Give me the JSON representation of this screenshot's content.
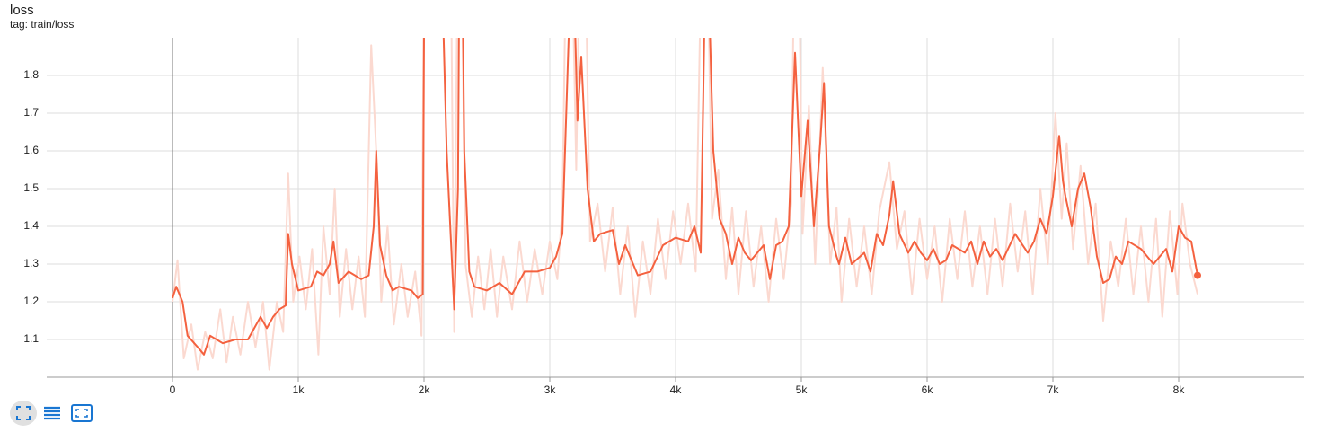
{
  "title": "loss",
  "tag": "tag: train/loss",
  "chart_data": {
    "type": "line",
    "xlim": [
      -1000,
      9000
    ],
    "ylim": [
      1.0,
      1.9
    ],
    "xticks": [
      0,
      {
        "value": 1000,
        "label": "1k"
      },
      {
        "value": 2000,
        "label": "2k"
      },
      {
        "value": 3000,
        "label": "3k"
      },
      {
        "value": 4000,
        "label": "4k"
      },
      {
        "value": 5000,
        "label": "5k"
      },
      {
        "value": 6000,
        "label": "6k"
      },
      {
        "value": 7000,
        "label": "7k"
      },
      {
        "value": 8000,
        "label": "8k"
      }
    ],
    "yticks": [
      1.1,
      1.2,
      1.3,
      1.4,
      1.5,
      1.6,
      1.7,
      1.8
    ],
    "grid": true,
    "series": [
      {
        "color": "#fbd9d0",
        "x": [
          0,
          40,
          90,
          150,
          200,
          260,
          320,
          380,
          430,
          480,
          540,
          600,
          660,
          720,
          770,
          830,
          880,
          920,
          960,
          1010,
          1060,
          1110,
          1160,
          1200,
          1250,
          1290,
          1330,
          1380,
          1430,
          1480,
          1530,
          1580,
          1620,
          1660,
          1710,
          1760,
          1820,
          1870,
          1930,
          1980,
          2010,
          2200,
          2240,
          2280,
          2330,
          2380,
          2430,
          2480,
          2530,
          2580,
          2630,
          2700,
          2760,
          2820,
          2880,
          2940,
          3000,
          3060,
          3100,
          3150,
          3210,
          3260,
          3320,
          3380,
          3440,
          3500,
          3560,
          3620,
          3680,
          3740,
          3800,
          3860,
          3920,
          3980,
          4040,
          4100,
          4160,
          4230,
          4290,
          4340,
          4400,
          4450,
          4500,
          4560,
          4620,
          4680,
          4740,
          4800,
          4860,
          4920,
          4960,
          5010,
          5060,
          5110,
          5170,
          5230,
          5280,
          5320,
          5380,
          5440,
          5500,
          5560,
          5620,
          5700,
          5760,
          5820,
          5880,
          5940,
          6000,
          6060,
          6120,
          6180,
          6240,
          6300,
          6360,
          6420,
          6480,
          6540,
          6600,
          6660,
          6720,
          6780,
          6840,
          6900,
          6960,
          7020,
          7070,
          7110,
          7160,
          7220,
          7280,
          7340,
          7400,
          7460,
          7520,
          7580,
          7640,
          7700,
          7760,
          7820,
          7870,
          7930,
          7990,
          8030,
          8090,
          8150
        ],
        "values": [
          1.2,
          1.31,
          1.05,
          1.14,
          1.02,
          1.12,
          1.05,
          1.18,
          1.04,
          1.16,
          1.06,
          1.2,
          1.08,
          1.2,
          1.02,
          1.2,
          1.12,
          1.54,
          1.2,
          1.32,
          1.18,
          1.34,
          1.06,
          1.4,
          1.22,
          1.5,
          1.16,
          1.34,
          1.18,
          1.32,
          1.16,
          1.88,
          1.6,
          1.2,
          1.4,
          1.14,
          1.3,
          1.16,
          1.28,
          1.11,
          2.6,
          2.6,
          1.12,
          2.6,
          1.3,
          1.16,
          1.32,
          1.18,
          1.34,
          1.16,
          1.32,
          1.18,
          1.36,
          1.2,
          1.34,
          1.22,
          1.36,
          1.26,
          1.45,
          2.6,
          1.55,
          2.6,
          1.36,
          1.46,
          1.28,
          1.45,
          1.22,
          1.4,
          1.16,
          1.36,
          1.22,
          1.42,
          1.26,
          1.44,
          1.3,
          1.46,
          1.28,
          2.6,
          1.42,
          1.55,
          1.26,
          1.45,
          1.22,
          1.44,
          1.24,
          1.4,
          1.2,
          1.42,
          1.26,
          1.46,
          2.6,
          1.38,
          1.72,
          1.3,
          1.82,
          1.3,
          1.45,
          1.2,
          1.42,
          1.24,
          1.4,
          1.22,
          1.44,
          1.57,
          1.34,
          1.44,
          1.22,
          1.42,
          1.26,
          1.4,
          1.2,
          1.42,
          1.26,
          1.44,
          1.24,
          1.4,
          1.22,
          1.42,
          1.24,
          1.46,
          1.28,
          1.44,
          1.22,
          1.5,
          1.3,
          1.7,
          1.42,
          1.62,
          1.34,
          1.56,
          1.3,
          1.46,
          1.15,
          1.36,
          1.24,
          1.42,
          1.22,
          1.4,
          1.2,
          1.42,
          1.16,
          1.44,
          1.22,
          1.46,
          1.3,
          1.22
        ]
      },
      {
        "color": "#f4613f",
        "x": [
          0,
          30,
          80,
          120,
          200,
          250,
          300,
          400,
          500,
          600,
          700,
          750,
          800,
          850,
          900,
          920,
          950,
          1000,
          1100,
          1150,
          1200,
          1250,
          1280,
          1320,
          1400,
          1500,
          1560,
          1600,
          1620,
          1650,
          1700,
          1750,
          1800,
          1900,
          1950,
          1990,
          2010,
          2100,
          2180,
          2240,
          2270,
          2290,
          2320,
          2360,
          2400,
          2500,
          2600,
          2700,
          2800,
          2900,
          3000,
          3050,
          3100,
          3150,
          3180,
          3220,
          3250,
          3300,
          3350,
          3400,
          3500,
          3550,
          3600,
          3700,
          3800,
          3900,
          4000,
          4100,
          4150,
          4200,
          4230,
          4270,
          4300,
          4350,
          4400,
          4450,
          4500,
          4550,
          4600,
          4700,
          4750,
          4800,
          4850,
          4900,
          4950,
          5000,
          5050,
          5100,
          5150,
          5180,
          5220,
          5280,
          5300,
          5350,
          5400,
          5500,
          5550,
          5600,
          5650,
          5700,
          5730,
          5780,
          5850,
          5900,
          5950,
          6000,
          6050,
          6100,
          6150,
          6200,
          6300,
          6350,
          6400,
          6450,
          6500,
          6550,
          6600,
          6700,
          6800,
          6850,
          6900,
          6950,
          7000,
          7050,
          7080,
          7100,
          7150,
          7200,
          7250,
          7300,
          7350,
          7400,
          7450,
          7500,
          7550,
          7600,
          7700,
          7800,
          7900,
          7950,
          8000,
          8050,
          8100,
          8150
        ],
        "values": [
          1.21,
          1.24,
          1.2,
          1.11,
          1.08,
          1.06,
          1.11,
          1.09,
          1.1,
          1.1,
          1.16,
          1.13,
          1.16,
          1.18,
          1.19,
          1.38,
          1.3,
          1.23,
          1.24,
          1.28,
          1.27,
          1.3,
          1.36,
          1.25,
          1.28,
          1.26,
          1.27,
          1.4,
          1.6,
          1.35,
          1.27,
          1.23,
          1.24,
          1.23,
          1.21,
          1.22,
          2.6,
          2.6,
          1.6,
          1.18,
          1.5,
          2.6,
          1.6,
          1.28,
          1.24,
          1.23,
          1.25,
          1.22,
          1.28,
          1.28,
          1.29,
          1.32,
          1.38,
          1.9,
          2.2,
          1.68,
          1.85,
          1.5,
          1.36,
          1.38,
          1.39,
          1.3,
          1.35,
          1.27,
          1.28,
          1.35,
          1.37,
          1.36,
          1.4,
          1.33,
          1.95,
          1.95,
          1.6,
          1.42,
          1.38,
          1.3,
          1.37,
          1.33,
          1.31,
          1.35,
          1.26,
          1.35,
          1.36,
          1.4,
          1.86,
          1.48,
          1.68,
          1.4,
          1.62,
          1.78,
          1.4,
          1.32,
          1.3,
          1.37,
          1.3,
          1.33,
          1.28,
          1.38,
          1.35,
          1.43,
          1.52,
          1.38,
          1.33,
          1.36,
          1.33,
          1.31,
          1.34,
          1.3,
          1.31,
          1.35,
          1.33,
          1.36,
          1.3,
          1.36,
          1.32,
          1.34,
          1.31,
          1.38,
          1.33,
          1.36,
          1.42,
          1.38,
          1.48,
          1.64,
          1.52,
          1.48,
          1.4,
          1.5,
          1.54,
          1.45,
          1.32,
          1.25,
          1.26,
          1.32,
          1.3,
          1.36,
          1.34,
          1.3,
          1.34,
          1.28,
          1.4,
          1.37,
          1.36,
          1.27
        ]
      }
    ]
  }
}
